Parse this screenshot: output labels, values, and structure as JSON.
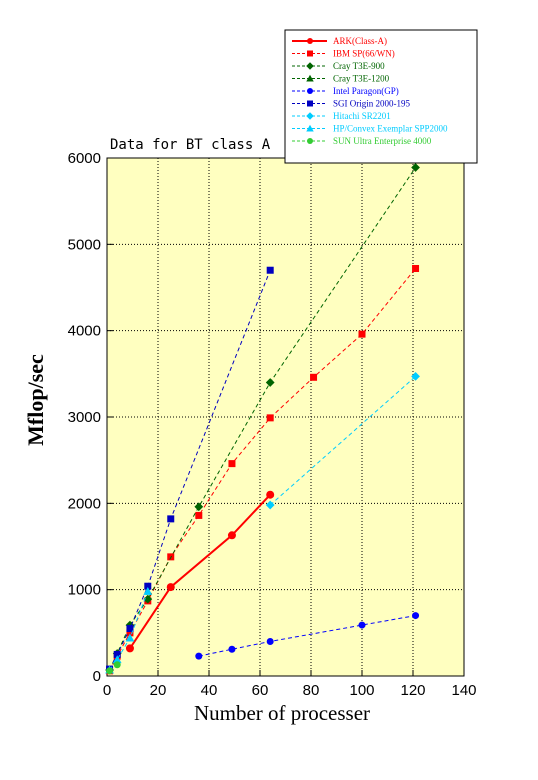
{
  "chart_data": {
    "type": "line",
    "title": "Data for BT class A",
    "xlabel": "Number of processer",
    "ylabel": "Mflop/sec",
    "xlim": [
      0,
      140
    ],
    "ylim": [
      0,
      6000
    ],
    "x_ticks": [
      "0",
      "20",
      "40",
      "60",
      "80",
      "100",
      "120",
      "140"
    ],
    "y_ticks": [
      "0",
      "1000",
      "2000",
      "3000",
      "4000",
      "5000",
      "6000"
    ],
    "grid": true,
    "background_color": "#ffffc0",
    "legend_position": "top-right, outside plot",
    "series": [
      {
        "name": "ARK(Class-A)",
        "color": "#ff0000",
        "marker": "circle",
        "line": "solid",
        "x": [
          9,
          25,
          49,
          64
        ],
        "y": [
          320,
          1030,
          1630,
          2100
        ]
      },
      {
        "name": "IBM SP(66/WN)",
        "color": "#ff0000",
        "marker": "square",
        "line": "dashed",
        "x": [
          1,
          4,
          9,
          16,
          25,
          36,
          49,
          64,
          81,
          100,
          121
        ],
        "y": [
          60,
          230,
          500,
          870,
          1380,
          1860,
          2460,
          2990,
          3460,
          3960,
          4720
        ]
      },
      {
        "name": "Cray T3E-900",
        "color": "#006400",
        "marker": "diamond",
        "line": "dashed",
        "x": [
          1,
          4,
          9,
          16,
          36,
          64,
          121
        ],
        "y": [
          70,
          260,
          590,
          890,
          1960,
          3400,
          5890
        ]
      },
      {
        "name": "Cray T3E-1200",
        "color": "#006400",
        "marker": "triangle",
        "line": "dashed",
        "x": [],
        "y": []
      },
      {
        "name": "Intel Paragon(GP)",
        "color": "#0000ff",
        "marker": "circle",
        "line": "dashed",
        "x": [
          36,
          49,
          64,
          100,
          121
        ],
        "y": [
          230,
          310,
          400,
          590,
          700
        ]
      },
      {
        "name": "SGI Origin 2000-195",
        "color": "#0000c0",
        "marker": "square",
        "line": "dashed",
        "x": [
          1,
          4,
          9,
          16,
          25,
          64
        ],
        "y": [
          80,
          250,
          550,
          1040,
          1820,
          4700
        ]
      },
      {
        "name": "Hitachi SR2201",
        "color": "#00ccff",
        "marker": "diamond",
        "line": "dashed",
        "x": [
          64,
          121
        ],
        "y": [
          1980,
          3470
        ]
      },
      {
        "name": "HP/Convex Exemplar SPP2000",
        "color": "#00ccff",
        "marker": "triangle",
        "line": "dashed",
        "x": [
          1,
          4,
          9,
          16
        ],
        "y": [
          70,
          190,
          440,
          980
        ]
      },
      {
        "name": "SUN Ultra Enterprise 4000",
        "color": "#33cc33",
        "marker": "circle",
        "line": "dashed",
        "x": [
          1,
          4
        ],
        "y": [
          60,
          130
        ]
      }
    ]
  }
}
